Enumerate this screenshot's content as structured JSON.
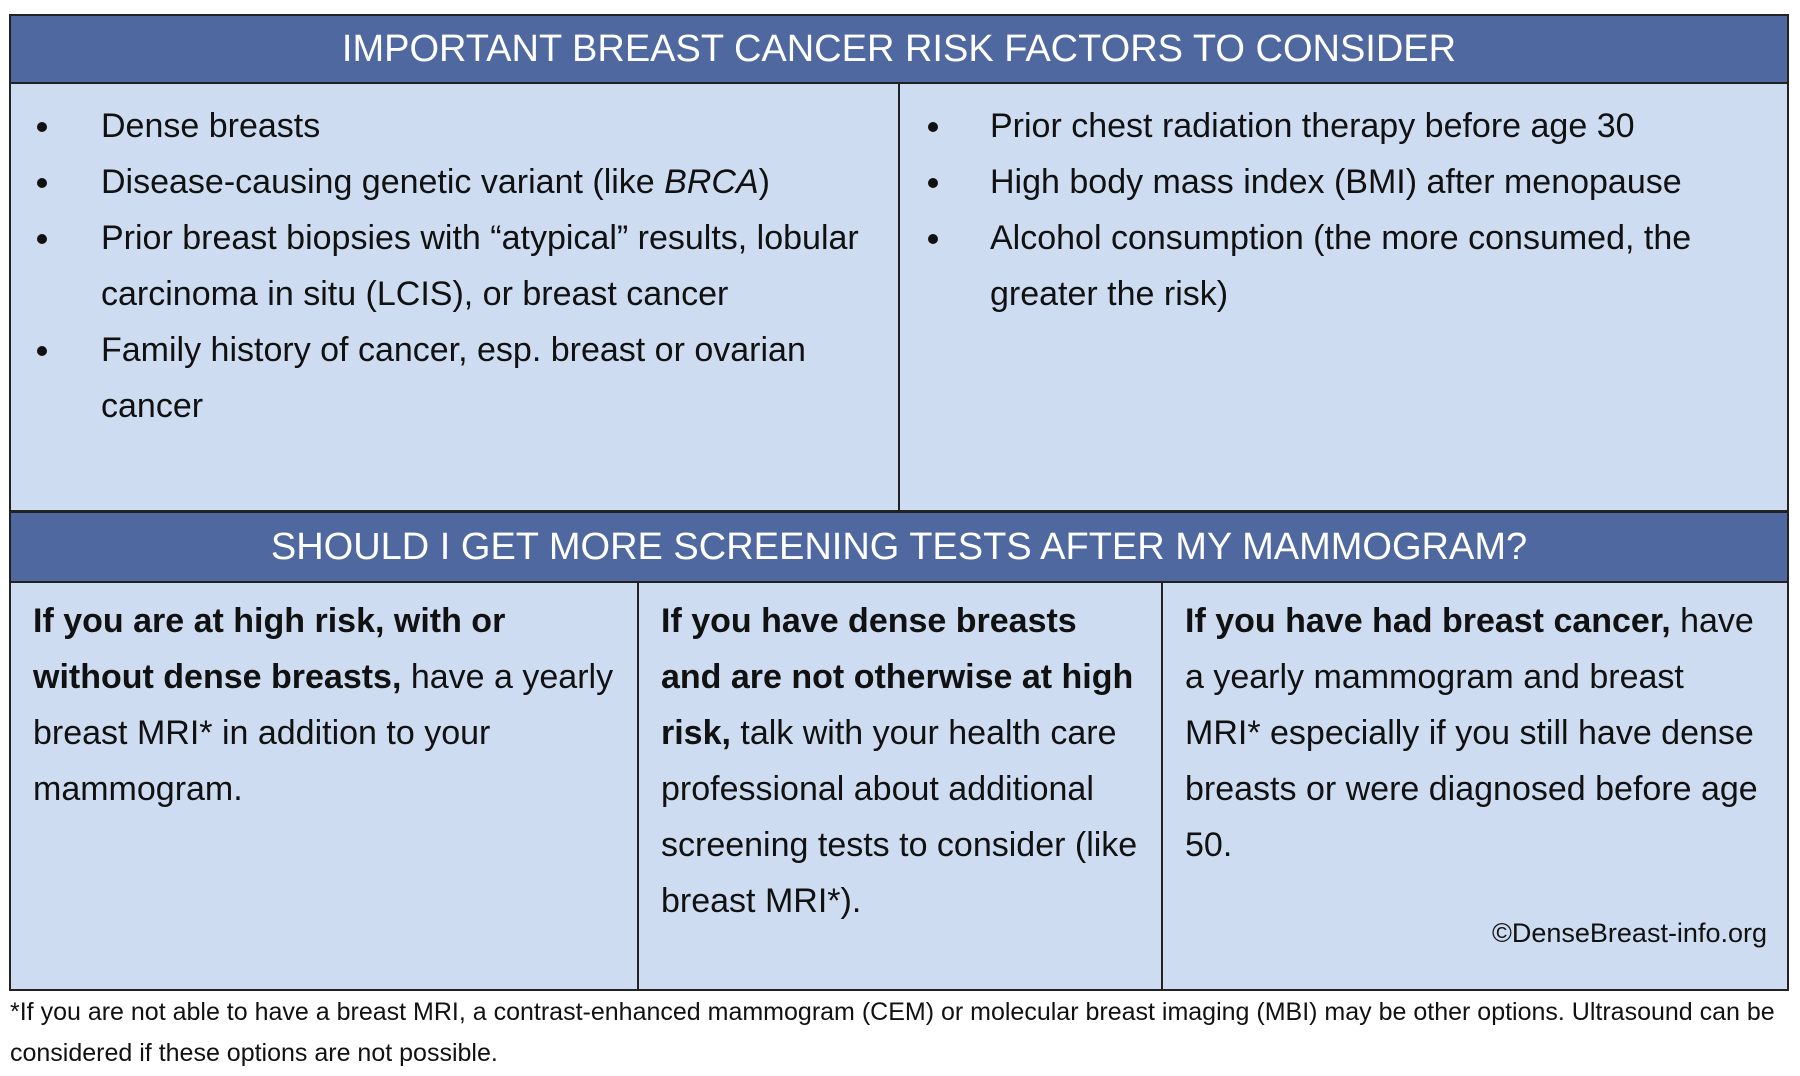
{
  "risk_table": {
    "title": "IMPORTANT BREAST CANCER RISK FACTORS TO CONSIDER",
    "left_items": [
      [
        {
          "text": "Dense breasts"
        }
      ],
      [
        {
          "text": "Disease-causing genetic variant (like "
        },
        {
          "text": "BRCA",
          "style": "italic"
        },
        {
          "text": ")"
        }
      ],
      [
        {
          "text": "Prior breast biopsies with “atypical” results, lobular carcinoma in situ (LCIS), or breast cancer"
        }
      ],
      [
        {
          "text": "Family history of cancer, esp. breast or ovarian cancer"
        }
      ]
    ],
    "right_items": [
      [
        {
          "text": "Prior chest radiation therapy before age 30"
        }
      ],
      [
        {
          "text": "High body mass index (BMI) after menopause"
        }
      ],
      [
        {
          "text": "Alcohol consumption (the more consumed, the greater the risk)"
        }
      ]
    ]
  },
  "screening_table": {
    "title": "SHOULD I GET MORE SCREENING TESTS AFTER MY MAMMOGRAM?",
    "cells": [
      {
        "bold": "If you are at high risk, with or without dense breasts,",
        "text": " have a yearly breast MRI* in addition to your mammogram."
      },
      {
        "bold": "If you have dense breasts and are not otherwise at high risk,",
        "text": " talk with your health care professional about additional screening tests to consider (like breast MRI*)."
      },
      {
        "bold": "If you have had breast cancer,",
        "text": " have a yearly mammogram and breast MRI* especially if you still have dense breasts or were diagnosed before age 50."
      }
    ],
    "copyright": "©DenseBreast-info.org"
  },
  "footnote": "*If you are not able to have a breast MRI, a contrast-enhanced mammogram (CEM) or molecular breast imaging (MBI) may be other options.  Ultrasound can be considered if these options are not possible."
}
